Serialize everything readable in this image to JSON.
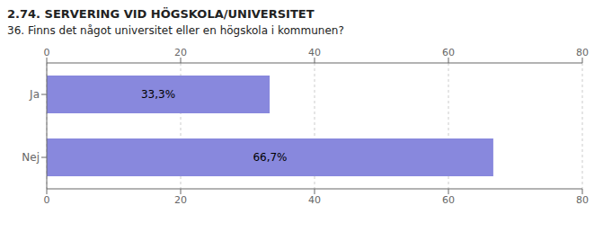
{
  "chart_data": {
    "type": "bar",
    "title": "2.74. SERVERING VID HÖGSKOLA/UNIVERSITET",
    "subtitle": "36. Finns det något universitet eller en högskola i kommunen?",
    "orientation": "horizontal",
    "categories": [
      "Nej",
      "Ja"
    ],
    "values": [
      66.7,
      33.3
    ],
    "value_labels": [
      "66,7%",
      "33,3%"
    ],
    "data_labels": true,
    "color": "#8888dd",
    "xlim": [
      0,
      80
    ],
    "xticks": [
      0,
      20,
      40,
      60,
      80
    ],
    "grid": true
  }
}
